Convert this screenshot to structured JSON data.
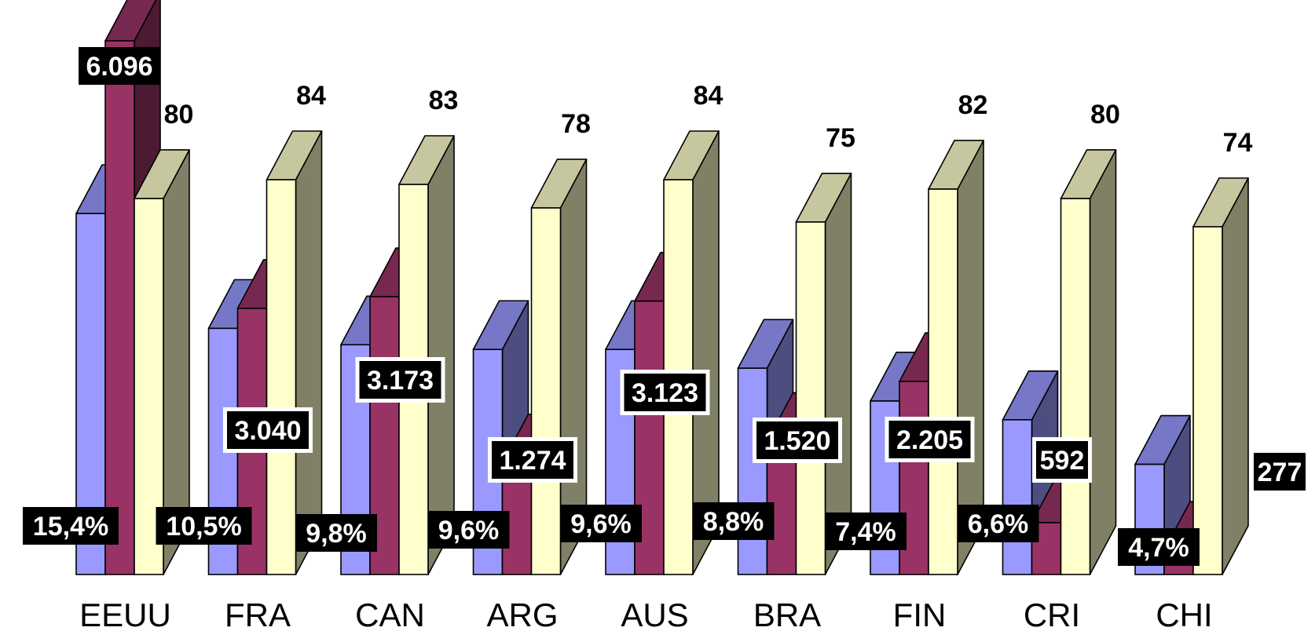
{
  "chart_data": {
    "type": "bar",
    "title": "",
    "xlabel": "",
    "ylabel": "",
    "grid": false,
    "legend": "none",
    "categories": [
      "EEUU",
      "FRA",
      "CAN",
      "ARG",
      "AUS",
      "BRA",
      "FIN",
      "CRI",
      "CHI"
    ],
    "series": [
      {
        "color": "#9999ff",
        "values": [
          15.4,
          10.5,
          9.8,
          9.6,
          9.6,
          8.8,
          7.4,
          6.6,
          4.7
        ],
        "labels": [
          "15,4%",
          "10,5%",
          "9,8%",
          "9,6%",
          "9,6%",
          "8,8%",
          "7,4%",
          "6,6%",
          "4,7%"
        ]
      },
      {
        "color": "#993366",
        "values": [
          6096,
          3040,
          3173,
          1274,
          3123,
          1520,
          2205,
          592,
          277
        ],
        "labels": [
          "6.096",
          "3.040",
          "3.173",
          "1.274",
          "3.123",
          "1.520",
          "2.205",
          "592",
          "277"
        ]
      },
      {
        "color": "#ffffcc",
        "values": [
          80,
          84,
          83,
          78,
          84,
          75,
          82,
          80,
          74
        ],
        "labels": [
          "80",
          "84",
          "83",
          "78",
          "84",
          "75",
          "82",
          "80",
          "74"
        ]
      }
    ]
  }
}
